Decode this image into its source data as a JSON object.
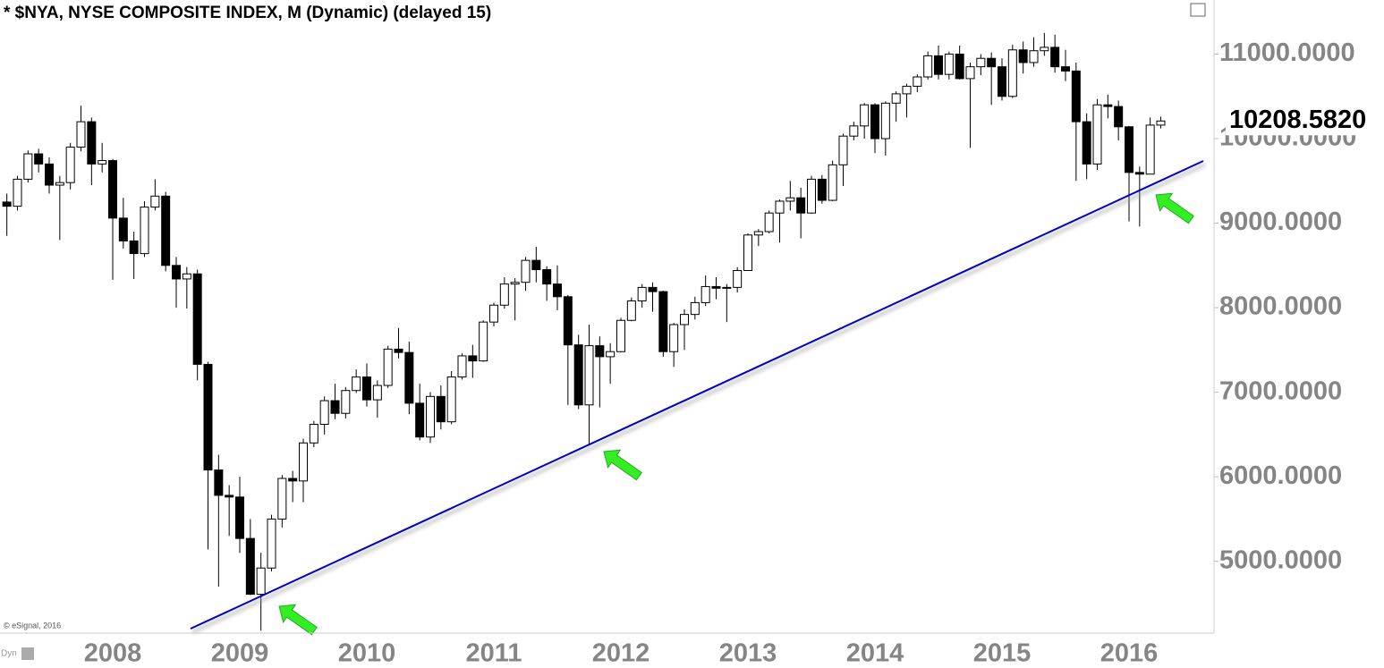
{
  "chart_data": {
    "type": "candlestick",
    "title": "* $NYA, NYSE COMPOSITE INDEX, M (Dynamic) (delayed 15)",
    "copyright": "© eSignal, 2016",
    "footer": "Dyn",
    "price_label": "10208.5820",
    "categories": [
      null,
      null,
      null,
      null,
      null,
      null,
      null,
      null,
      null,
      null,
      "2008",
      null,
      null,
      null,
      null,
      null,
      null,
      null,
      null,
      null,
      null,
      null,
      "2009",
      null,
      null,
      null,
      null,
      null,
      null,
      null,
      null,
      null,
      null,
      null,
      "2010",
      null,
      null,
      null,
      null,
      null,
      null,
      null,
      null,
      null,
      null,
      null,
      "2011",
      null,
      null,
      null,
      null,
      null,
      null,
      null,
      null,
      null,
      null,
      null,
      "2012",
      null,
      null,
      null,
      null,
      null,
      null,
      null,
      null,
      null,
      null,
      null,
      "2013",
      null,
      null,
      null,
      null,
      null,
      null,
      null,
      null,
      null,
      null,
      null,
      "2014",
      null,
      null,
      null,
      null,
      null,
      null,
      null,
      null,
      null,
      null,
      null,
      "2015",
      null,
      null,
      null,
      null,
      null,
      null,
      null,
      null,
      null,
      null,
      null,
      "2016",
      null,
      null,
      null
    ],
    "open": [
      9250,
      9200,
      9520,
      9820,
      9700,
      9450,
      9480,
      9900,
      10200,
      9700,
      9740,
      9060,
      8790,
      8640,
      9190,
      9320,
      8500,
      8340,
      8400,
      7330,
      6080,
      5780,
      5760,
      5270,
      4610,
      4920,
      5500,
      5980,
      5950,
      6400,
      6620,
      6900,
      6750,
      7020,
      7180,
      6910,
      7080,
      7510,
      7470,
      6870,
      6470,
      6950,
      6650,
      7180,
      7430,
      7370,
      7830,
      8030,
      8280,
      8300,
      8560,
      8450,
      8280,
      8130,
      7560,
      6850,
      7550,
      7420,
      7480,
      7850,
      8080,
      8240,
      8190,
      7480,
      7800,
      7920,
      8060,
      8250,
      8230,
      8240,
      8440,
      8860,
      8900,
      9120,
      9260,
      9300,
      9120,
      9520,
      9270,
      9690,
      10030,
      10150,
      10400,
      10000,
      10420,
      10530,
      10620,
      10730,
      10980,
      10760,
      11000,
      10710,
      10850,
      10950,
      10850,
      10500,
      11050,
      10900,
      11040,
      11080,
      10850,
      10800,
      10200,
      9700,
      10400,
      10380,
      10140,
      9600,
      9580,
      10160
    ],
    "high": [
      9350,
      9560,
      9860,
      9880,
      9780,
      9560,
      9950,
      10390,
      10250,
      9950,
      9760,
      9300,
      8900,
      9260,
      9520,
      9370,
      8600,
      8480,
      8450,
      7360,
      6260,
      5900,
      6000,
      5500,
      5100,
      5550,
      6020,
      6070,
      6450,
      6660,
      6950,
      7100,
      7060,
      7270,
      7340,
      7140,
      7550,
      7760,
      7600,
      7100,
      7000,
      7080,
      7250,
      7460,
      7560,
      7850,
      8060,
      8360,
      8350,
      8600,
      8720,
      8490,
      8500,
      8150,
      7680,
      7800,
      7660,
      7580,
      7880,
      8120,
      8280,
      8300,
      8200,
      7820,
      7980,
      8130,
      8380,
      8360,
      8280,
      8480,
      8880,
      8930,
      9150,
      9280,
      9500,
      9420,
      9560,
      9570,
      9740,
      10060,
      10200,
      10420,
      10420,
      10440,
      10560,
      10650,
      10760,
      11030,
      11100,
      11030,
      11100,
      10900,
      11000,
      11020,
      10950,
      11110,
      11150,
      11200,
      11250,
      11230,
      11050,
      10900,
      10300,
      10470,
      10520,
      10450,
      10150,
      9670,
      10250,
      10260
    ],
    "low": [
      8850,
      9150,
      9480,
      9600,
      9350,
      8800,
      9400,
      9850,
      9450,
      9600,
      8330,
      8700,
      8340,
      8600,
      9150,
      8430,
      8000,
      7990,
      7140,
      5140,
      4700,
      5300,
      5100,
      4600,
      4180,
      4880,
      5400,
      5700,
      5700,
      6350,
      6500,
      6680,
      6690,
      6990,
      6830,
      6700,
      7050,
      7400,
      6740,
      6430,
      6400,
      6560,
      6620,
      7150,
      7170,
      7360,
      7780,
      7990,
      7850,
      8200,
      8300,
      8080,
      7970,
      6850,
      6800,
      6390,
      6820,
      7100,
      7470,
      7840,
      8000,
      7950,
      7420,
      7300,
      7500,
      7860,
      8020,
      8100,
      7830,
      8180,
      8440,
      8730,
      8880,
      8770,
      9150,
      8820,
      9110,
      9230,
      9260,
      9440,
      9980,
      10000,
      9830,
      9800,
      10200,
      10250,
      10550,
      10700,
      10700,
      10700,
      10700,
      9890,
      10750,
      10400,
      10450,
      10480,
      10770,
      10850,
      10980,
      10780,
      10680,
      9500,
      9520,
      9630,
      10240,
      9980,
      9020,
      8960,
      9580,
      10120
    ],
    "close": [
      9200,
      9520,
      9820,
      9700,
      9450,
      9480,
      9900,
      10200,
      9700,
      9740,
      9060,
      8790,
      8640,
      9190,
      9320,
      8500,
      8340,
      8400,
      7330,
      6080,
      5780,
      5760,
      5270,
      4610,
      4920,
      5500,
      5980,
      5950,
      6400,
      6620,
      6900,
      6750,
      7020,
      7180,
      6910,
      7080,
      7510,
      7470,
      6870,
      6470,
      6950,
      6650,
      7180,
      7430,
      7370,
      7830,
      8030,
      8280,
      8300,
      8560,
      8450,
      8280,
      8130,
      7560,
      6850,
      7550,
      7420,
      7480,
      7850,
      8080,
      8240,
      8190,
      7480,
      7800,
      7920,
      8060,
      8250,
      8230,
      8240,
      8440,
      8860,
      8900,
      9120,
      9260,
      9300,
      9120,
      9520,
      9270,
      9690,
      10030,
      10150,
      10400,
      10000,
      10420,
      10530,
      10620,
      10730,
      10980,
      10760,
      11000,
      10710,
      10850,
      10950,
      10850,
      10500,
      11050,
      10900,
      11040,
      11080,
      10850,
      10800,
      10200,
      9700,
      10400,
      10380,
      10140,
      9600,
      9580,
      10160,
      10208.582
    ],
    "up_color": "#ffffff",
    "down_color": "#000000",
    "ylim": [
      4150,
      11640
    ],
    "yticks": [
      {
        "value": 5000,
        "label": "5000.0000"
      },
      {
        "value": 6000,
        "label": "6000.0000"
      },
      {
        "value": 7000,
        "label": "7000.0000"
      },
      {
        "value": 8000,
        "label": "8000.0000"
      },
      {
        "value": 9000,
        "label": "9000.0000"
      },
      {
        "value": 10000,
        "label": "10000.0000"
      },
      {
        "value": 11000,
        "label": "11000.0000"
      }
    ]
  }
}
